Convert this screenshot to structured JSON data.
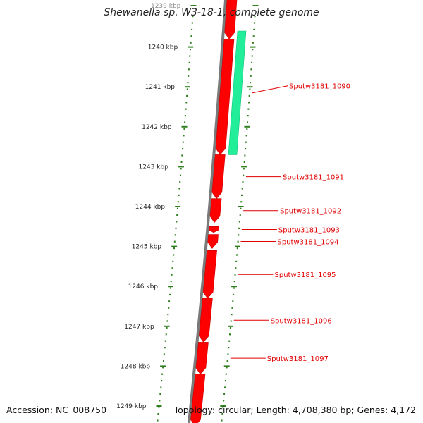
{
  "title": "Shewanella sp. W3-18-1, complete genome",
  "accession_text": "Accession: NC_008750",
  "topology_text": "Topology: circular; Length: 4,708,380 bp; Genes: 4,172",
  "colors": {
    "backbone": "#7a7a7a",
    "forward_gene": "#ff0000",
    "reverse_gene": "#22ee99",
    "gene_label": "#e00000",
    "ruler": "#2f7f1f",
    "text": "#222222"
  },
  "ruler": {
    "unit": "kbp",
    "ticks": [
      1239,
      1240,
      1241,
      1242,
      1243,
      1244,
      1245,
      1246,
      1247,
      1248,
      1249
    ],
    "tick_labels": [
      "1239 kbp",
      "1240 kbp",
      "1241 kbp",
      "1242 kbp",
      "1243 kbp",
      "1244 kbp",
      "1245 kbp",
      "1246 kbp",
      "1247 kbp",
      "1248 kbp",
      "1249 kbp"
    ]
  },
  "genes": [
    {
      "strand": "+",
      "start_kbp": 1238.6,
      "end_kbp": 1239.8,
      "label": ""
    },
    {
      "strand": "+",
      "start_kbp": 1239.8,
      "end_kbp": 1242.7,
      "label": ""
    },
    {
      "strand": "-",
      "start_kbp": 1239.6,
      "end_kbp": 1242.7,
      "label": "Sputw3181_1090"
    },
    {
      "strand": "+",
      "start_kbp": 1242.7,
      "end_kbp": 1243.8,
      "label": "Sputw3181_1091"
    },
    {
      "strand": "+",
      "start_kbp": 1243.8,
      "end_kbp": 1244.4,
      "label": "Sputw3181_1092"
    },
    {
      "strand": "+",
      "start_kbp": 1244.5,
      "end_kbp": 1244.65,
      "label": "Sputw3181_1093"
    },
    {
      "strand": "+",
      "start_kbp": 1244.7,
      "end_kbp": 1245.05,
      "label": "Sputw3181_1094"
    },
    {
      "strand": "+",
      "start_kbp": 1245.1,
      "end_kbp": 1246.3,
      "label": "Sputw3181_1095"
    },
    {
      "strand": "+",
      "start_kbp": 1246.3,
      "end_kbp": 1247.4,
      "label": "Sputw3181_1096"
    },
    {
      "strand": "+",
      "start_kbp": 1247.4,
      "end_kbp": 1248.2,
      "label": "Sputw3181_1097"
    },
    {
      "strand": "+",
      "start_kbp": 1248.2,
      "end_kbp": 1249.5,
      "label": ""
    }
  ]
}
